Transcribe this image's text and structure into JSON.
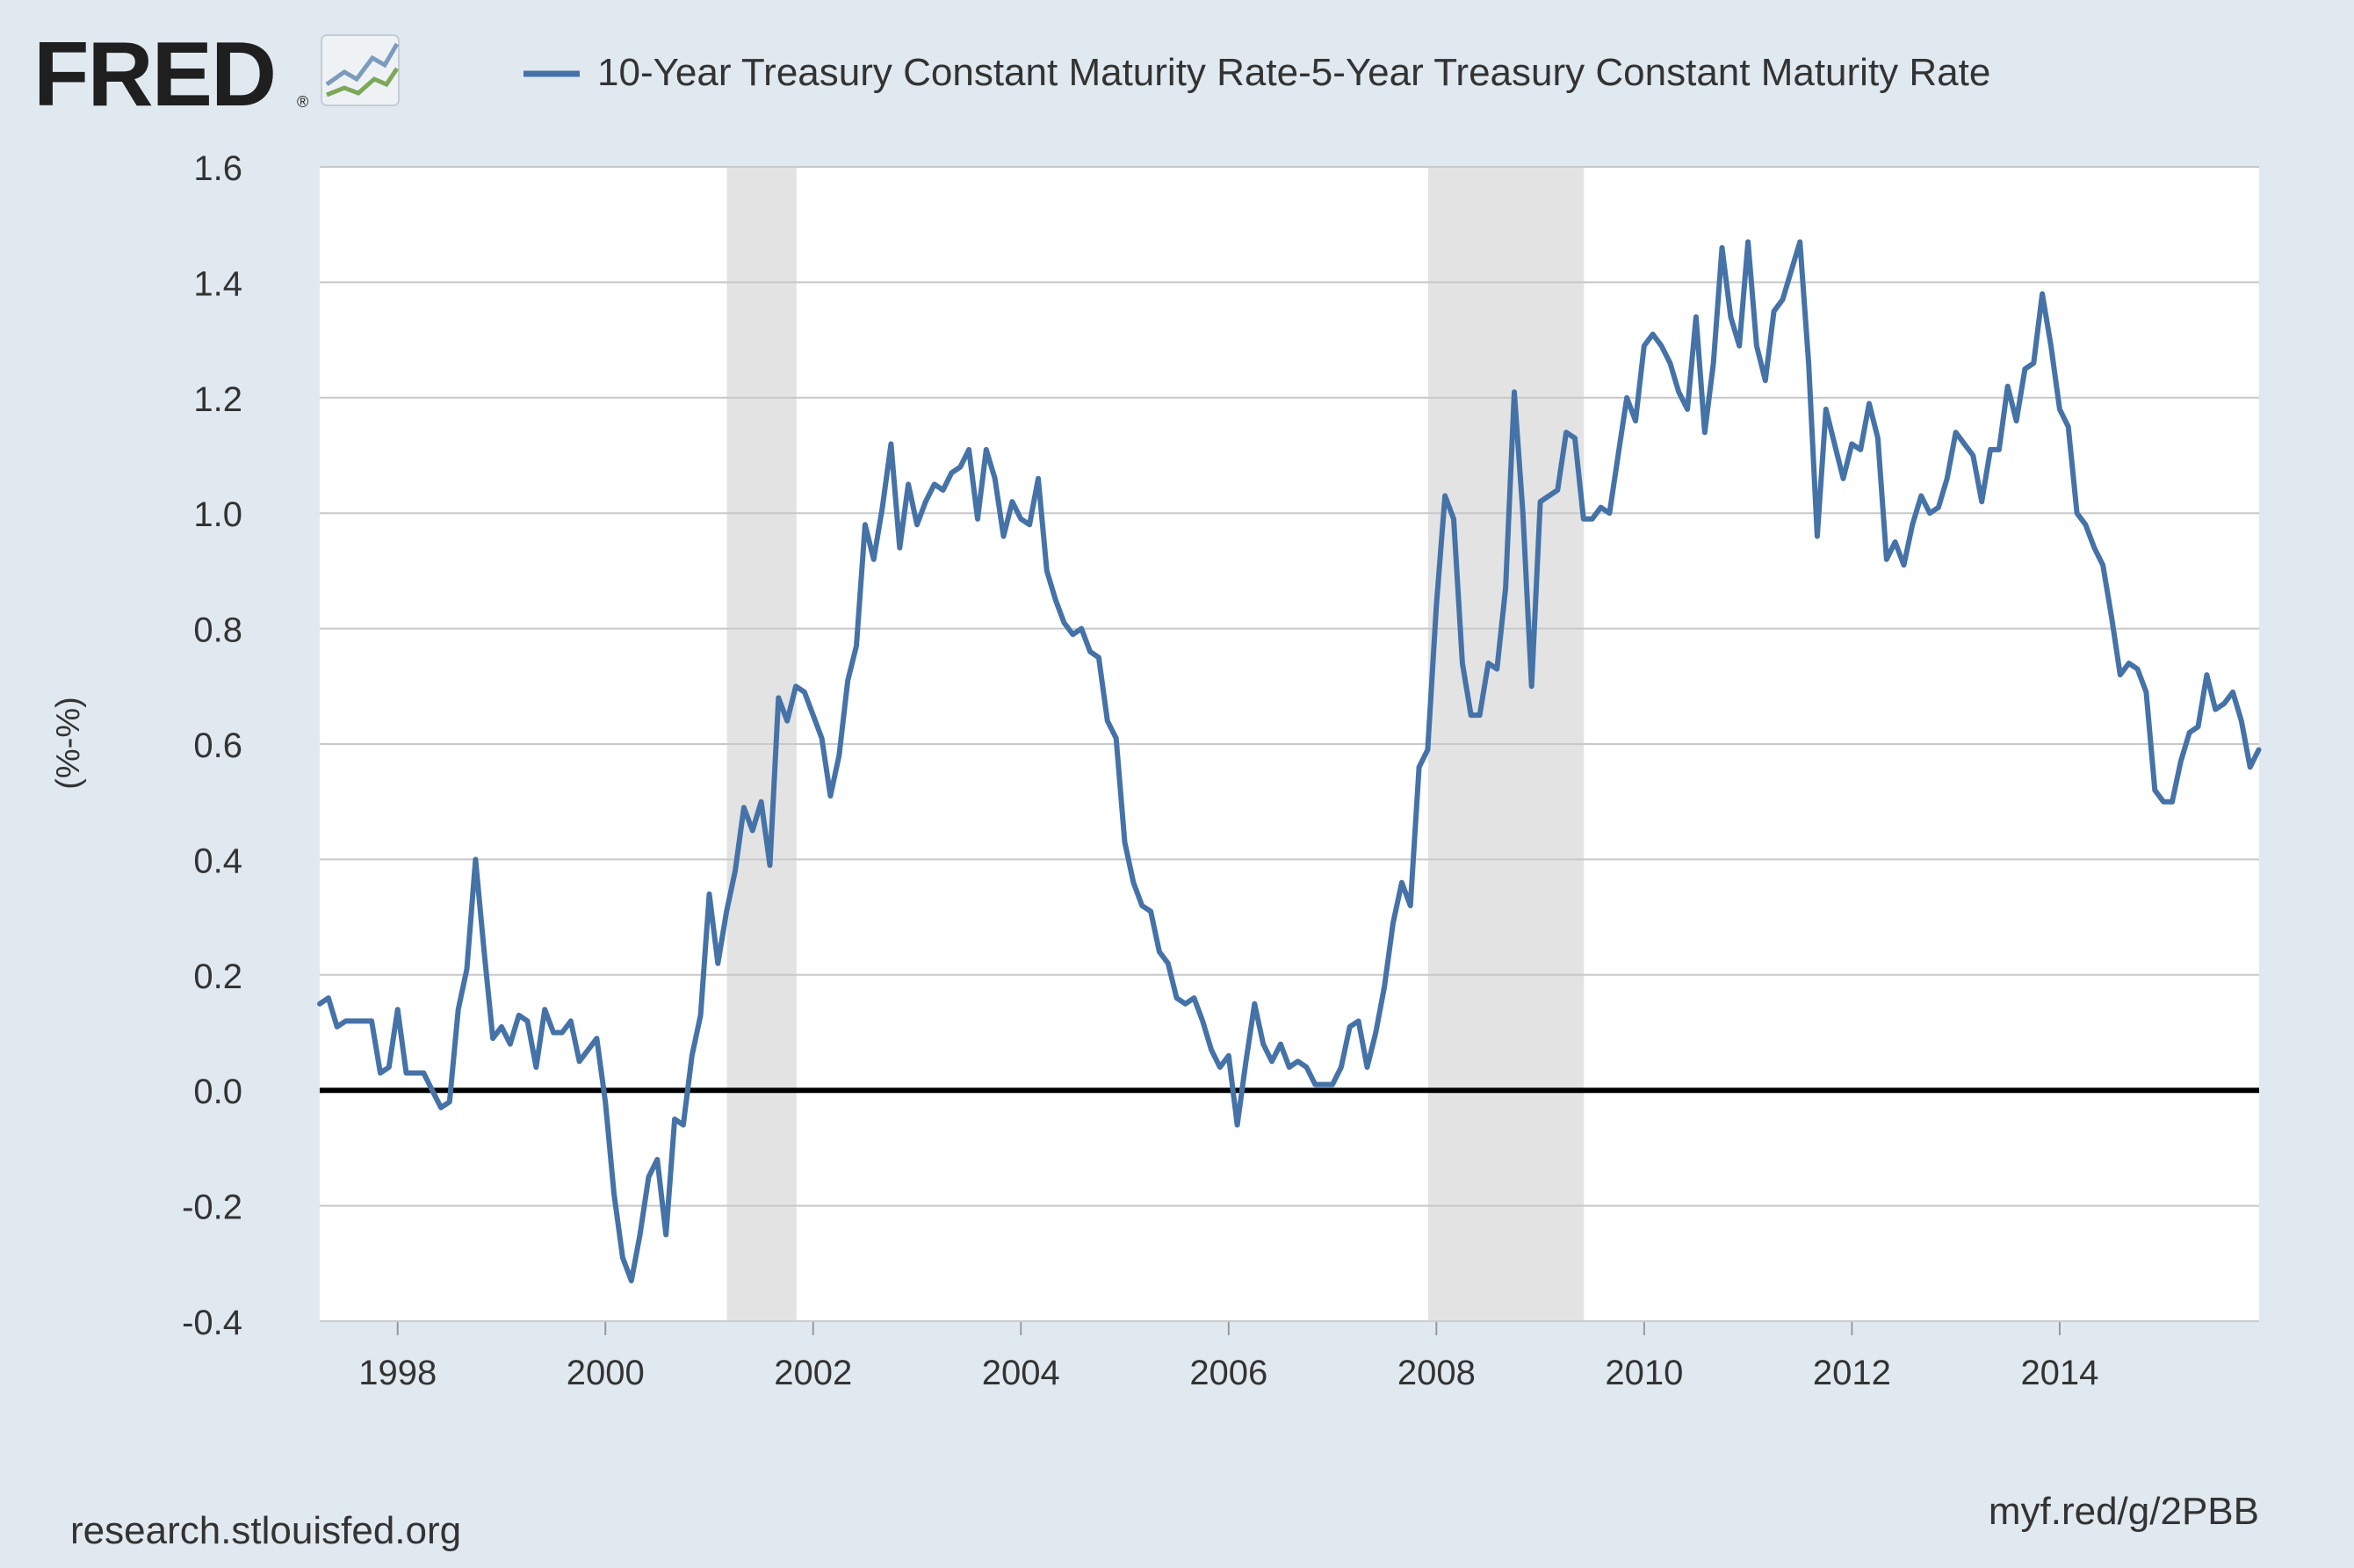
{
  "brand": {
    "logo_text": "FRED",
    "registered_mark": "®"
  },
  "footer": {
    "source": "research.stlouisfed.org",
    "short_link": "myf.red/g/2PBB"
  },
  "colors": {
    "background": "#e1e9f0",
    "plot_background": "#ffffff",
    "series_line": "#4572a7",
    "gridline": "#c8c8c8",
    "zero_line": "#000000",
    "recession_band": "#e3e3e3",
    "text": "#333333"
  },
  "chart_data": {
    "type": "line",
    "title": "",
    "xlabel": "",
    "ylabel": "(%-%)",
    "ylim": [
      -0.4,
      1.6
    ],
    "xlim": [
      1997.25,
      2015.92
    ],
    "grid": true,
    "legend_position": "top",
    "y_ticks": [
      "1.6",
      "1.4",
      "1.2",
      "1.0",
      "0.8",
      "0.6",
      "0.4",
      "0.2",
      "0.0",
      "-0.2",
      "-0.4"
    ],
    "y_tick_values": [
      1.6,
      1.4,
      1.2,
      1.0,
      0.8,
      0.6,
      0.4,
      0.2,
      0.0,
      -0.2,
      -0.4
    ],
    "x_ticks": [
      "1998",
      "2000",
      "2002",
      "2004",
      "2006",
      "2008",
      "2010",
      "2012",
      "2014"
    ],
    "x_tick_values": [
      1998,
      2000,
      2002,
      2004,
      2006,
      2008,
      2010,
      2012,
      2014
    ],
    "recessions": [
      {
        "start": 2001.17,
        "end": 2001.84
      },
      {
        "start": 2007.92,
        "end": 2009.42
      }
    ],
    "series": [
      {
        "name": "10-Year Treasury Constant Maturity Rate-5-Year Treasury Constant Maturity Rate",
        "start_year": 1997.25,
        "step": 0.08333,
        "values": [
          0.15,
          0.16,
          0.11,
          0.12,
          0.12,
          0.12,
          0.12,
          0.03,
          0.04,
          0.14,
          0.03,
          0.03,
          0.03,
          0.0,
          -0.03,
          -0.02,
          0.14,
          0.21,
          0.4,
          0.24,
          0.09,
          0.11,
          0.08,
          0.13,
          0.12,
          0.04,
          0.14,
          0.1,
          0.1,
          0.12,
          0.05,
          0.07,
          0.09,
          -0.02,
          -0.18,
          -0.29,
          -0.33,
          -0.25,
          -0.15,
          -0.12,
          -0.25,
          -0.05,
          -0.06,
          0.06,
          0.13,
          0.34,
          0.22,
          0.31,
          0.38,
          0.49,
          0.45,
          0.5,
          0.39,
          0.68,
          0.64,
          0.7,
          0.69,
          0.65,
          0.61,
          0.51,
          0.58,
          0.71,
          0.77,
          0.98,
          0.92,
          1.01,
          1.12,
          0.94,
          1.05,
          0.98,
          1.02,
          1.05,
          1.04,
          1.07,
          1.08,
          1.11,
          0.99,
          1.11,
          1.06,
          0.96,
          1.02,
          0.99,
          0.98,
          1.06,
          0.9,
          0.85,
          0.81,
          0.79,
          0.8,
          0.76,
          0.75,
          0.64,
          0.61,
          0.43,
          0.36,
          0.32,
          0.31,
          0.24,
          0.22,
          0.16,
          0.15,
          0.16,
          0.12,
          0.07,
          0.04,
          0.06,
          -0.06,
          0.05,
          0.15,
          0.08,
          0.05,
          0.08,
          0.04,
          0.05,
          0.04,
          0.01,
          0.01,
          0.01,
          0.04,
          0.11,
          0.12,
          0.04,
          0.1,
          0.18,
          0.29,
          0.36,
          0.32,
          0.56,
          0.59,
          0.84,
          1.03,
          0.99,
          0.74,
          0.65,
          0.65,
          0.74,
          0.73,
          0.87,
          1.21,
          1.0,
          0.7,
          1.02,
          1.03,
          1.04,
          1.14,
          1.13,
          0.99,
          0.99,
          1.01,
          1.0,
          1.1,
          1.2,
          1.16,
          1.29,
          1.31,
          1.29,
          1.26,
          1.21,
          1.18,
          1.34,
          1.14,
          1.26,
          1.46,
          1.34,
          1.29,
          1.47,
          1.29,
          1.23,
          1.35,
          1.37,
          1.42,
          1.47,
          1.26,
          0.96,
          1.18,
          1.12,
          1.06,
          1.12,
          1.11,
          1.19,
          1.13,
          0.92,
          0.95,
          0.91,
          0.98,
          1.03,
          1.0,
          1.01,
          1.06,
          1.14,
          1.12,
          1.1,
          1.02,
          1.11,
          1.11,
          1.22,
          1.16,
          1.25,
          1.26,
          1.38,
          1.29,
          1.18,
          1.15,
          1.0,
          0.98,
          0.94,
          0.91,
          0.82,
          0.72,
          0.74,
          0.73,
          0.69,
          0.52,
          0.5,
          0.5,
          0.57,
          0.62,
          0.63,
          0.72,
          0.66,
          0.67,
          0.69,
          0.64,
          0.56,
          0.59
        ]
      }
    ]
  }
}
